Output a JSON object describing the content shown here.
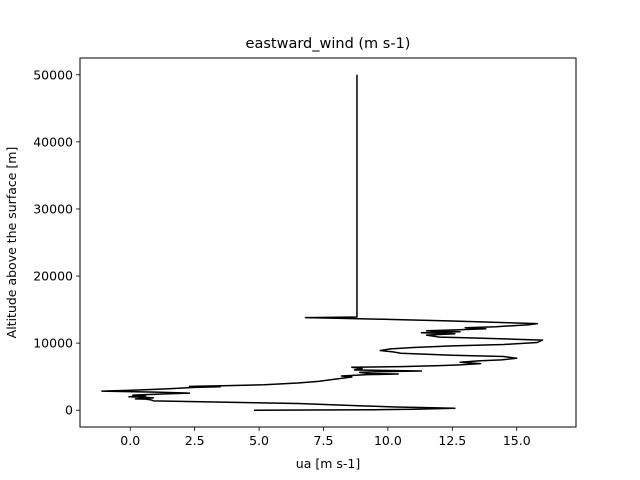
{
  "chart_data": {
    "type": "line",
    "title": "eastward_wind (m s-1)",
    "xlabel": "ua [m s-1]",
    "ylabel": "Altitude above the surface [m]",
    "xlim": [
      -1.95,
      17.3
    ],
    "ylim": [
      -2500,
      52500
    ],
    "xticks": [
      0.0,
      2.5,
      5.0,
      7.5,
      10.0,
      12.5,
      15.0
    ],
    "xtick_labels": [
      "0.0",
      "2.5",
      "5.0",
      "7.5",
      "10.0",
      "12.5",
      "15.0"
    ],
    "yticks": [
      0,
      10000,
      20000,
      30000,
      40000,
      50000
    ],
    "ytick_labels": [
      "0",
      "10000",
      "20000",
      "30000",
      "40000",
      "50000"
    ],
    "grid": false,
    "series": [
      {
        "color": "#000000",
        "points": [
          [
            4.8,
            0
          ],
          [
            7.0,
            30
          ],
          [
            9.5,
            80
          ],
          [
            11.0,
            150
          ],
          [
            12.6,
            300
          ],
          [
            11.5,
            380
          ],
          [
            10.3,
            480
          ],
          [
            9.0,
            650
          ],
          [
            6.5,
            1000
          ],
          [
            3.0,
            1250
          ],
          [
            0.9,
            1400
          ],
          [
            0.8,
            1550
          ],
          [
            0.6,
            1650
          ],
          [
            0.2,
            1700
          ],
          [
            0.9,
            1850
          ],
          [
            0.4,
            1950
          ],
          [
            -0.05,
            2000
          ],
          [
            0.6,
            2150
          ],
          [
            0.1,
            2250
          ],
          [
            1.5,
            2450
          ],
          [
            2.3,
            2550
          ],
          [
            1.0,
            2700
          ],
          [
            -1.1,
            2850
          ],
          [
            0.2,
            3000
          ],
          [
            1.5,
            3200
          ],
          [
            2.5,
            3400
          ],
          [
            3.5,
            3500
          ],
          [
            2.3,
            3550
          ],
          [
            3.6,
            3650
          ],
          [
            5.2,
            3800
          ],
          [
            6.5,
            4050
          ],
          [
            7.3,
            4300
          ],
          [
            8.0,
            4650
          ],
          [
            8.6,
            4950
          ],
          [
            8.2,
            5100
          ],
          [
            9.2,
            5300
          ],
          [
            10.4,
            5400
          ],
          [
            9.3,
            5450
          ],
          [
            8.9,
            5650
          ],
          [
            9.8,
            5750
          ],
          [
            11.3,
            5850
          ],
          [
            8.7,
            6000
          ],
          [
            9.0,
            6200
          ],
          [
            8.6,
            6400
          ],
          [
            10.5,
            6500
          ],
          [
            12.0,
            6650
          ],
          [
            12.7,
            6750
          ],
          [
            13.6,
            6950
          ],
          [
            12.8,
            7150
          ],
          [
            13.5,
            7350
          ],
          [
            14.4,
            7500
          ],
          [
            15.0,
            7750
          ],
          [
            14.5,
            8000
          ],
          [
            12.5,
            8200
          ],
          [
            10.5,
            8500
          ],
          [
            10.2,
            8700
          ],
          [
            9.7,
            8900
          ],
          [
            10.1,
            9150
          ],
          [
            11.0,
            9350
          ],
          [
            12.5,
            9600
          ],
          [
            14.5,
            9800
          ],
          [
            15.8,
            10100
          ],
          [
            16.0,
            10450
          ],
          [
            15.2,
            10550
          ],
          [
            14.0,
            10700
          ],
          [
            13.0,
            10800
          ],
          [
            12.0,
            10900
          ],
          [
            11.5,
            11200
          ],
          [
            12.6,
            11400
          ],
          [
            11.3,
            11550
          ],
          [
            12.8,
            11700
          ],
          [
            11.5,
            11850
          ],
          [
            12.5,
            11950
          ],
          [
            13.8,
            12150
          ],
          [
            13.0,
            12300
          ],
          [
            14.2,
            12450
          ],
          [
            15.5,
            12750
          ],
          [
            15.8,
            12900
          ],
          [
            12.5,
            13300
          ],
          [
            10.0,
            13550
          ],
          [
            8.0,
            13700
          ],
          [
            6.8,
            13800
          ],
          [
            8.0,
            13850
          ],
          [
            8.8,
            13900
          ],
          [
            8.8,
            20000
          ],
          [
            8.8,
            30000
          ],
          [
            8.8,
            40000
          ],
          [
            8.8,
            50000
          ]
        ]
      }
    ]
  }
}
